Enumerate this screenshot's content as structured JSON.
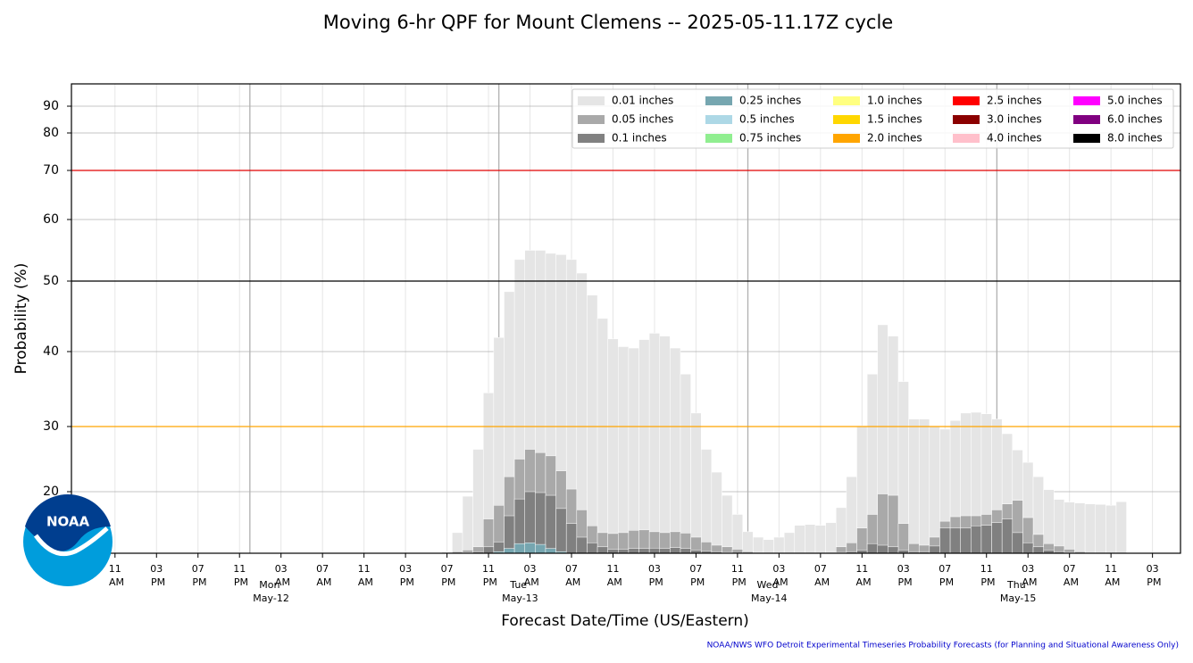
{
  "chart_data": {
    "type": "bar",
    "title": "Moving 6-hr QPF for Mount Clemens -- 2025-05-11.17Z cycle",
    "xlabel": "Forecast Date/Time (US/Eastern)",
    "ylabel": "Probability (%)",
    "footnote": "NOAA/NWS WFO Detroit Experimental Timeseries Probability Forecasts (for Planning and Situational Awareness Only)",
    "logo_text": "NOAA",
    "ylim": [
      0,
      100
    ],
    "yticks": [
      20,
      30,
      40,
      50,
      60,
      70,
      80,
      90
    ],
    "grid": true,
    "hlines": [
      {
        "value": 70,
        "color": "#e00000"
      },
      {
        "value": 50,
        "color": "#000000"
      },
      {
        "value": 30,
        "color": "#ffa500"
      }
    ],
    "xlim": [
      -4.2,
      102.7
    ],
    "xticks": [
      {
        "value": 0,
        "label": "11 AM"
      },
      {
        "value": 4,
        "label": "03 PM"
      },
      {
        "value": 8,
        "label": "07 PM"
      },
      {
        "value": 12,
        "label": "11 PM"
      },
      {
        "value": 16,
        "label": "03 AM"
      },
      {
        "value": 20,
        "label": "07 AM"
      },
      {
        "value": 24,
        "label": "11 AM"
      },
      {
        "value": 28,
        "label": "03 PM"
      },
      {
        "value": 32,
        "label": "07 PM"
      },
      {
        "value": 36,
        "label": "11 PM"
      },
      {
        "value": 40,
        "label": "03 AM"
      },
      {
        "value": 44,
        "label": "07 AM"
      },
      {
        "value": 48,
        "label": "11 AM"
      },
      {
        "value": 52,
        "label": "03 PM"
      },
      {
        "value": 56,
        "label": "07 PM"
      },
      {
        "value": 60,
        "label": "11 PM"
      },
      {
        "value": 64,
        "label": "03 AM"
      },
      {
        "value": 68,
        "label": "07 AM"
      },
      {
        "value": 72,
        "label": "11 AM"
      },
      {
        "value": 76,
        "label": "03 PM"
      },
      {
        "value": 80,
        "label": "07 PM"
      },
      {
        "value": 84,
        "label": "11 PM"
      },
      {
        "value": 88,
        "label": "03 AM"
      },
      {
        "value": 92,
        "label": "07 AM"
      },
      {
        "value": 96,
        "label": "11 AM"
      },
      {
        "value": 100,
        "label": "03 PM"
      }
    ],
    "day_labels": [
      {
        "value": 13,
        "label": "Mon May-12"
      },
      {
        "value": 37,
        "label": "Tue May-13"
      },
      {
        "value": 61,
        "label": "Wed May-14"
      },
      {
        "value": 85,
        "label": "Thu May-15"
      }
    ],
    "x": [
      32,
      33,
      34,
      35,
      36,
      37,
      38,
      39,
      40,
      41,
      42,
      43,
      44,
      45,
      46,
      47,
      48,
      49,
      50,
      51,
      52,
      53,
      54,
      55,
      56,
      57,
      58,
      59,
      60,
      61,
      62,
      63,
      64,
      65,
      66,
      67,
      68,
      69,
      70,
      71,
      72,
      73,
      74,
      75,
      76,
      77,
      78,
      79,
      80,
      81,
      82,
      83,
      84,
      85,
      86,
      87,
      88,
      89,
      90,
      91,
      92,
      93,
      94,
      95,
      96,
      97
    ],
    "series": [
      {
        "name": "0.01 inches",
        "color": "#e5e5e5",
        "values": [
          1,
          11,
          19,
          26.5,
          34.5,
          42,
          48.5,
          53.5,
          55,
          55,
          54.5,
          54.3,
          53.5,
          51.3,
          48,
          44.7,
          41.8,
          40.7,
          40.5,
          41.7,
          42.6,
          42.2,
          40.5,
          37,
          31.8,
          26.5,
          23,
          19.2,
          15,
          11.2,
          10,
          8.5,
          10,
          11,
          12.6,
          12.8,
          12.6,
          13.2,
          16.5,
          22.3,
          30.1,
          37,
          43.8,
          42.2,
          36,
          31,
          31,
          30,
          29.6,
          30.8,
          31.8,
          31.9,
          31.7,
          31,
          28.9,
          26.4,
          24.5,
          22.3,
          20.3,
          18.3,
          17.7,
          17.5,
          17.3,
          17.2,
          17,
          17.8
        ]
      },
      {
        "name": "0.05 inches",
        "color": "#a9a9a9",
        "values": [
          0.5,
          1,
          2,
          4,
          14,
          17,
          22.3,
          25,
          26.5,
          26,
          25.5,
          23.2,
          20.4,
          16,
          12.5,
          11,
          10.8,
          11,
          11.5,
          11.6,
          11.2,
          11,
          11.2,
          10.9,
          10,
          7,
          5,
          4,
          2.5,
          1,
          0.5,
          0,
          0,
          0,
          0,
          0,
          0,
          0.5,
          4,
          6.5,
          12,
          15,
          19.5,
          19.2,
          13,
          6,
          5,
          10,
          13.5,
          14.5,
          14.7,
          14.7,
          15,
          16,
          17.3,
          18.1,
          14.3,
          10.6,
          6,
          4.5,
          2.5,
          1,
          0,
          0,
          0,
          0
        ]
      },
      {
        "name": "0.1 inches",
        "color": "#808080",
        "values": [
          0,
          0,
          0.5,
          1,
          4,
          7,
          14.7,
          18.4,
          20,
          19.8,
          19.2,
          16.3,
          13,
          10,
          6.5,
          4,
          2.5,
          2.5,
          3,
          3,
          3.2,
          3,
          3.5,
          3,
          2,
          1.5,
          1,
          0.5,
          0,
          0,
          0,
          0,
          0,
          0,
          0,
          0,
          0,
          0,
          0.5,
          1,
          2,
          6,
          5,
          4,
          2,
          1,
          1,
          4.5,
          12,
          12,
          12,
          12.5,
          12.6,
          13.2,
          14,
          11,
          6.5,
          4,
          2,
          1,
          0.5,
          0,
          0,
          0,
          0,
          0
        ]
      },
      {
        "name": "0.25 inches",
        "color": "#76a6b0",
        "values": [
          0,
          0,
          0,
          0,
          0,
          1,
          3,
          6,
          6.5,
          5.5,
          3,
          1,
          0,
          0,
          0,
          0,
          0,
          0,
          0,
          0,
          0,
          0,
          0,
          0,
          0,
          0,
          0,
          0,
          0,
          0,
          0,
          0,
          0,
          0,
          0,
          0,
          0,
          0,
          0,
          0,
          0,
          0,
          0,
          0,
          0,
          0,
          0,
          0,
          0,
          0,
          0,
          0,
          0,
          0,
          0,
          0,
          0,
          0,
          0,
          0,
          0,
          0,
          0,
          0,
          0,
          0
        ]
      },
      {
        "name": "0.5 inches",
        "color": "#add8e6"
      },
      {
        "name": "0.75 inches",
        "color": "#90ee90"
      },
      {
        "name": "1.0 inches",
        "color": "#ffff80"
      },
      {
        "name": "1.5 inches",
        "color": "#ffd700"
      },
      {
        "name": "2.0 inches",
        "color": "#ffa500"
      },
      {
        "name": "2.5 inches",
        "color": "#ff0000"
      },
      {
        "name": "3.0 inches",
        "color": "#8b0000"
      },
      {
        "name": "4.0 inches",
        "color": "#ffc0cb"
      },
      {
        "name": "5.0 inches",
        "color": "#ff00ff"
      },
      {
        "name": "6.0 inches",
        "color": "#800080"
      },
      {
        "name": "8.0 inches",
        "color": "#000000"
      }
    ]
  }
}
